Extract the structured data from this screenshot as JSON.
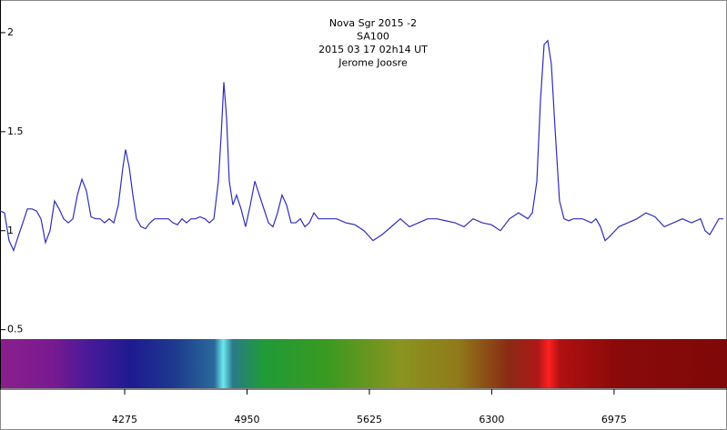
{
  "chart_data": {
    "type": "line",
    "title_lines": [
      "Nova Sgr 2015 -2",
      "SA100",
      "2015 03 17     02h14 UT",
      "Jerome Joosre"
    ],
    "x": [
      3587,
      3612,
      3637,
      3662,
      3687,
      3713,
      3738,
      3763,
      3788,
      3813,
      3838,
      3863,
      3888,
      3913,
      3938,
      3964,
      3989,
      4014,
      4039,
      4064,
      4089,
      4114,
      4139,
      4164,
      4189,
      4215,
      4240,
      4265,
      4280,
      4300,
      4320,
      4340,
      4365,
      4390,
      4415,
      4440,
      4466,
      4491,
      4516,
      4541,
      4566,
      4591,
      4616,
      4641,
      4666,
      4691,
      4717,
      4742,
      4767,
      4792,
      4807,
      4822,
      4837,
      4852,
      4872,
      4892,
      4917,
      4942,
      4968,
      4993,
      5018,
      5043,
      5068,
      5093,
      5118,
      5143,
      5168,
      5193,
      5219,
      5244,
      5269,
      5294,
      5319,
      5344,
      5394,
      5444,
      5495,
      5545,
      5595,
      5645,
      5695,
      5746,
      5796,
      5846,
      5896,
      5946,
      5997,
      6047,
      6097,
      6147,
      6197,
      6248,
      6298,
      6348,
      6398,
      6448,
      6499,
      6524,
      6549,
      6569,
      6589,
      6609,
      6629,
      6649,
      6674,
      6699,
      6725,
      6750,
      6800,
      6850,
      6875,
      6900,
      6925,
      6950,
      7001,
      7051,
      7101,
      7151,
      7201,
      7252,
      7302,
      7352,
      7402,
      7452,
      7477,
      7503,
      7528,
      7553,
      7578
    ],
    "series": [
      {
        "color": "#2e2eb8",
        "values": [
          1.1,
          1.09,
          0.95,
          0.9,
          0.97,
          1.04,
          1.11,
          1.11,
          1.1,
          1.06,
          0.94,
          1.0,
          1.15,
          1.11,
          1.06,
          1.04,
          1.06,
          1.18,
          1.26,
          1.2,
          1.07,
          1.06,
          1.06,
          1.04,
          1.06,
          1.04,
          1.13,
          1.32,
          1.41,
          1.32,
          1.18,
          1.06,
          1.02,
          1.01,
          1.04,
          1.06,
          1.06,
          1.06,
          1.06,
          1.04,
          1.03,
          1.06,
          1.04,
          1.06,
          1.06,
          1.07,
          1.06,
          1.04,
          1.06,
          1.25,
          1.48,
          1.75,
          1.57,
          1.25,
          1.13,
          1.18,
          1.11,
          1.02,
          1.13,
          1.25,
          1.18,
          1.11,
          1.04,
          1.02,
          1.09,
          1.18,
          1.13,
          1.04,
          1.04,
          1.06,
          1.02,
          1.04,
          1.09,
          1.06,
          1.06,
          1.06,
          1.04,
          1.03,
          1.0,
          0.95,
          0.98,
          1.02,
          1.06,
          1.02,
          1.04,
          1.06,
          1.06,
          1.05,
          1.04,
          1.02,
          1.06,
          1.04,
          1.03,
          1.0,
          1.06,
          1.09,
          1.06,
          1.09,
          1.25,
          1.66,
          1.94,
          1.96,
          1.84,
          1.52,
          1.15,
          1.06,
          1.05,
          1.06,
          1.06,
          1.04,
          1.06,
          1.02,
          0.95,
          0.97,
          1.02,
          1.04,
          1.06,
          1.09,
          1.07,
          1.02,
          1.04,
          1.06,
          1.04,
          1.06,
          1.0,
          0.98,
          1.02,
          1.06,
          1.06
        ]
      }
    ],
    "xlim": [
      3587,
      7598
    ],
    "xticks": [
      4275,
      4950,
      5625,
      6300,
      6975
    ],
    "ylim": [
      0.2,
      2.165
    ],
    "yticks": [
      0.5,
      1,
      1.5,
      2
    ]
  }
}
